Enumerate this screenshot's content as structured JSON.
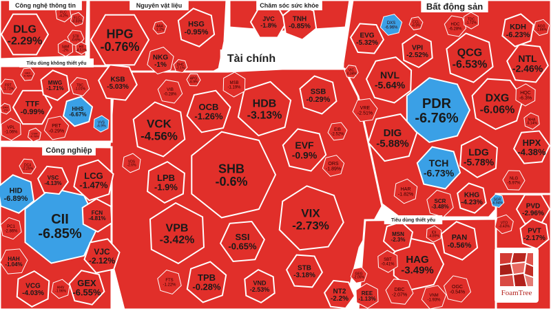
{
  "chart_data": {
    "type": "treemap",
    "colors": {
      "loss": "#e12f2a",
      "gain_blue": "#3aa0e6",
      "border": "#ffffff"
    },
    "sectors": [
      {
        "name": "Công nghệ thông tin",
        "tiles": [
          {
            "symbol": "DLG",
            "change": -2.29
          },
          {
            "symbol": "FLC",
            "change": -4.2
          },
          {
            "symbol": "ELC",
            "change": -0.83
          },
          {
            "symbol": "ST8",
            "change": -0.6
          },
          {
            "symbol": "SAM",
            "change": -2.0
          }
        ]
      },
      {
        "name": "Nguyên vật liệu",
        "tiles": [
          {
            "symbol": "HPG",
            "change": -0.76
          },
          {
            "symbol": "HSG",
            "change": -0.95
          },
          {
            "symbol": "NKG",
            "change": -1
          },
          {
            "symbol": "KSB",
            "change": -5.03
          },
          {
            "symbol": "HII",
            "change": -4.51
          },
          {
            "symbol": "AAA",
            "change": -1.2
          },
          {
            "symbol": "DHC",
            "change": -2.1
          }
        ]
      },
      {
        "name": "Chăm sóc sức khỏe",
        "tiles": [
          {
            "symbol": "JVC",
            "change": -1.8
          },
          {
            "symbol": "TNH",
            "change": -0.85
          }
        ]
      },
      {
        "name": "Bất động sản",
        "tiles": [
          {
            "symbol": "PDR",
            "change": -6.76
          },
          {
            "symbol": "QCG",
            "change": -6.53
          },
          {
            "symbol": "DXG",
            "change": -6.06
          },
          {
            "symbol": "NTL",
            "change": -2.46
          },
          {
            "symbol": "NVL",
            "change": -5.64
          },
          {
            "symbol": "DIG",
            "change": -5.88
          },
          {
            "symbol": "TCH",
            "change": -6.73
          },
          {
            "symbol": "LDG",
            "change": -5.78
          },
          {
            "symbol": "HPX",
            "change": -4.38
          },
          {
            "symbol": "KHG",
            "change": -4.23
          },
          {
            "symbol": "KDH",
            "change": -6.23
          },
          {
            "symbol": "EVG",
            "change": -5.32
          },
          {
            "symbol": "VPI",
            "change": -2.52
          },
          {
            "symbol": "DXS",
            "change": -6.96
          },
          {
            "symbol": "HDC",
            "change": -6.28
          },
          {
            "symbol": "HQC",
            "change": -6.3
          },
          {
            "symbol": "VRE",
            "change": -2.51
          },
          {
            "symbol": "SCR",
            "change": -3.48
          },
          {
            "symbol": "HAR",
            "change": -1.82
          },
          {
            "symbol": "NLG",
            "change": -5.97
          },
          {
            "symbol": "NHA",
            "change": -5.14
          },
          {
            "symbol": "AGG",
            "change": -1.86
          },
          {
            "symbol": "VIC",
            "change": -0.34
          },
          {
            "symbol": "TDC",
            "change": -1.72
          },
          {
            "symbol": "CCL",
            "change": -6.9
          },
          {
            "symbol": "SGR",
            "change": -6.94
          }
        ]
      },
      {
        "name": "Tài chính",
        "tiles": [
          {
            "symbol": "SHB",
            "change": -0.6
          },
          {
            "symbol": "VCK",
            "change": -4.56
          },
          {
            "symbol": "HDB",
            "change": -3.13
          },
          {
            "symbol": "VIX",
            "change": -2.73
          },
          {
            "symbol": "VPB",
            "change": -3.42
          },
          {
            "symbol": "OCB",
            "change": -1.26
          },
          {
            "symbol": "EVF",
            "change": -0.9
          },
          {
            "symbol": "LPB",
            "change": -1.9
          },
          {
            "symbol": "SSI",
            "change": -0.65
          },
          {
            "symbol": "SSB",
            "change": -0.29
          },
          {
            "symbol": "TPB",
            "change": -0.28
          },
          {
            "symbol": "STB",
            "change": -3.18
          },
          {
            "symbol": "VND",
            "change": -2.53
          },
          {
            "symbol": "ORS",
            "change": -1.89
          },
          {
            "symbol": "VIB",
            "change": -0.28
          },
          {
            "symbol": "MSB",
            "change": -1.19
          },
          {
            "symbol": "EIB",
            "change": -2.52
          },
          {
            "symbol": "FTS",
            "change": -1.22
          },
          {
            "symbol": "VDS",
            "change": -2.6
          },
          {
            "symbol": "APG",
            "change": -6.9
          }
        ]
      },
      {
        "name": "Tiêu dùng không thiết yếu",
        "tiles": [
          {
            "symbol": "TTF",
            "change": -0.99
          },
          {
            "symbol": "MWG",
            "change": -1.71
          },
          {
            "symbol": "HHS",
            "change": -6.67
          },
          {
            "symbol": "FRT",
            "change": -1.71
          },
          {
            "symbol": "VPL",
            "change": -1.06
          },
          {
            "symbol": "PET",
            "change": -0.29
          },
          {
            "symbol": "TBC",
            "change": -1.01
          },
          {
            "symbol": "VVS",
            "change": -6.9
          },
          {
            "symbol": "HAX",
            "change": -0.48
          },
          {
            "symbol": "DAH",
            "change": -2.0
          },
          {
            "symbol": "CSM",
            "change": -0.78
          }
        ]
      },
      {
        "name": "Công nghiệp",
        "tiles": [
          {
            "symbol": "CII",
            "change": -6.85
          },
          {
            "symbol": "HID",
            "change": -6.89
          },
          {
            "symbol": "LCG",
            "change": -1.47
          },
          {
            "symbol": "VSC",
            "change": -4.13
          },
          {
            "symbol": "FCN",
            "change": -4.81
          },
          {
            "symbol": "VJC",
            "change": -2.12
          },
          {
            "symbol": "GEX",
            "change": -6.55
          },
          {
            "symbol": "VCG",
            "change": -4.03
          },
          {
            "symbol": "HAH",
            "change": -1.04
          },
          {
            "symbol": "PC1",
            "change": -2.86
          },
          {
            "symbol": "HHV",
            "change": -1.96
          },
          {
            "symbol": "DC4",
            "change": -2.25
          }
        ]
      },
      {
        "name": "Tiêu dùng thiết yếu",
        "tiles": [
          {
            "symbol": "HAG",
            "change": -3.49
          },
          {
            "symbol": "PAN",
            "change": -0.56
          },
          {
            "symbol": "MSN",
            "change": -2.3
          },
          {
            "symbol": "DBC",
            "change": -2.07
          },
          {
            "symbol": "SBT",
            "change": -0.41
          },
          {
            "symbol": "VNM",
            "change": -1.93
          },
          {
            "symbol": "OGC",
            "change": -0.54
          },
          {
            "symbol": "IDI",
            "change": -4.89
          }
        ]
      },
      {
        "name": "",
        "tiles": [
          {
            "symbol": "PVD",
            "change": -2.96
          },
          {
            "symbol": "PVT",
            "change": -2.17
          },
          {
            "symbol": "VTO",
            "change": -0.43
          },
          {
            "symbol": "NT2",
            "change": -2.2
          },
          {
            "symbol": "REE",
            "change": -1.13
          },
          {
            "symbol": "GEG",
            "change": -2.05
          }
        ]
      }
    ]
  },
  "logo": {
    "text": "FoamTree"
  }
}
